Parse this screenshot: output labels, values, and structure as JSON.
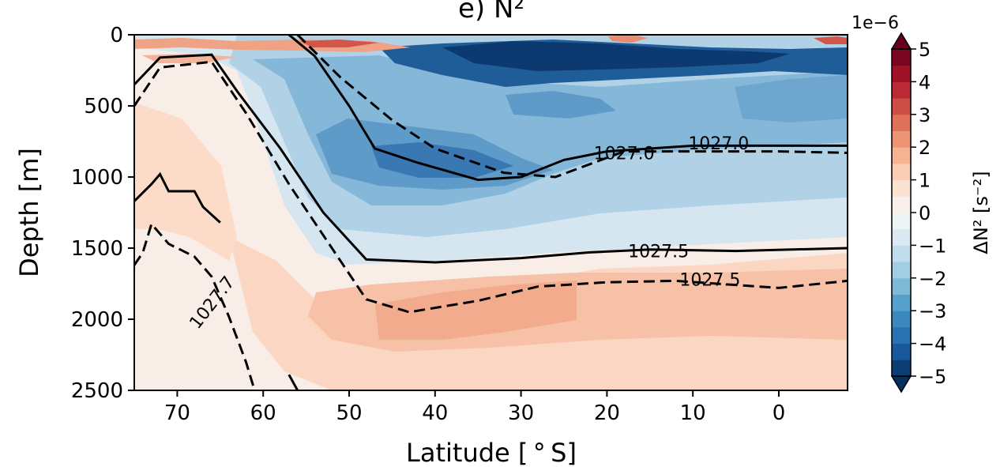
{
  "chart_data": {
    "type": "contour",
    "title": "e) N²",
    "xlabel": "Latitude [$^\\circ$S]",
    "xlabel_display": "Latitude [ ° S]",
    "ylabel": "Depth [m]",
    "x_ticks": [
      70,
      60,
      50,
      40,
      30,
      20,
      10,
      0
    ],
    "y_ticks": [
      0,
      500,
      1000,
      1500,
      2000,
      2500
    ],
    "xlim": [
      75,
      -8
    ],
    "ylim": [
      2500,
      0
    ],
    "colorbar": {
      "label": "ΔN² [s⁻²]",
      "offset_text": "1e−6",
      "ticks": [
        5,
        4,
        3,
        2,
        1,
        0,
        -1,
        -2,
        -3,
        -4,
        -5
      ],
      "tick_labels": [
        "5",
        "4",
        "3",
        "2",
        "1",
        "0",
        "−1",
        "−2",
        "−3",
        "−4",
        "−5"
      ],
      "range": [
        -5,
        5
      ],
      "levels": 20,
      "cmap": "RdBu_r",
      "extend": "both"
    },
    "contour_labels": [
      {
        "text": "1027.0",
        "lat": 18,
        "depth": 830
      },
      {
        "text": "1027.0",
        "lat": 7,
        "depth": 760
      },
      {
        "text": "1027.5",
        "lat": 14,
        "depth": 1520
      },
      {
        "text": "1027.5",
        "lat": 8,
        "depth": 1720
      },
      {
        "text": "1027.7",
        "lat": 66,
        "depth": 1880
      }
    ],
    "contours": {
      "solid_1027_0": [
        [
          57,
          0
        ],
        [
          54,
          150
        ],
        [
          50,
          500
        ],
        [
          47,
          800
        ],
        [
          42,
          900
        ],
        [
          35,
          1020
        ],
        [
          30,
          1000
        ],
        [
          25,
          880
        ],
        [
          20,
          820
        ],
        [
          10,
          780
        ],
        [
          0,
          780
        ],
        [
          -8,
          780
        ]
      ],
      "dashed_1027_0": [
        [
          56,
          0
        ],
        [
          51,
          300
        ],
        [
          45,
          600
        ],
        [
          40,
          800
        ],
        [
          32,
          970
        ],
        [
          26,
          1000
        ],
        [
          18,
          820
        ],
        [
          10,
          820
        ],
        [
          0,
          820
        ],
        [
          -8,
          830
        ]
      ],
      "solid_1027_5": [
        [
          75,
          350
        ],
        [
          72,
          160
        ],
        [
          66,
          140
        ],
        [
          63,
          400
        ],
        [
          58,
          800
        ],
        [
          53,
          1250
        ],
        [
          48,
          1580
        ],
        [
          40,
          1600
        ],
        [
          30,
          1570
        ],
        [
          22,
          1530
        ],
        [
          15,
          1510
        ],
        [
          5,
          1520
        ],
        [
          -8,
          1500
        ]
      ],
      "dashed_1027_5": [
        [
          75,
          500
        ],
        [
          72,
          230
        ],
        [
          66,
          190
        ],
        [
          62,
          550
        ],
        [
          57,
          1050
        ],
        [
          52,
          1500
        ],
        [
          48,
          1860
        ],
        [
          43,
          1950
        ],
        [
          35,
          1870
        ],
        [
          28,
          1770
        ],
        [
          20,
          1740
        ],
        [
          12,
          1730
        ],
        [
          0,
          1780
        ],
        [
          -8,
          1730
        ]
      ],
      "solid_1027_7_left": [
        [
          75,
          1170
        ],
        [
          73,
          1050
        ],
        [
          72,
          980
        ],
        [
          71,
          1100
        ],
        [
          68,
          1100
        ],
        [
          67,
          1210
        ],
        [
          65,
          1320
        ]
      ],
      "dashed_1027_7_left": [
        [
          75,
          1620
        ],
        [
          74,
          1530
        ],
        [
          73,
          1330
        ],
        [
          71,
          1470
        ],
        [
          68,
          1560
        ],
        [
          66,
          1700
        ],
        [
          64,
          1980
        ],
        [
          62,
          2300
        ],
        [
          61,
          2500
        ]
      ],
      "solid_deep_fragment": [
        [
          57,
          2390
        ],
        [
          56,
          2500
        ]
      ]
    }
  }
}
